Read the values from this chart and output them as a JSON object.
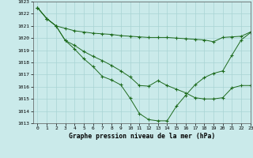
{
  "title": "Graphe pression niveau de la mer (hPa)",
  "x": [
    0,
    1,
    2,
    3,
    4,
    5,
    6,
    7,
    8,
    9,
    10,
    11,
    12,
    13,
    14,
    15,
    16,
    17,
    18,
    19,
    20,
    21,
    22,
    23
  ],
  "line1": [
    1022.5,
    1021.6,
    1021.0,
    1020.8,
    1020.6,
    1020.5,
    1020.4,
    1020.35,
    1020.3,
    1020.2,
    1020.15,
    1020.1,
    1020.05,
    1020.05,
    1020.05,
    1020.0,
    1019.95,
    1019.9,
    1019.85,
    1019.7,
    1020.05,
    1020.1,
    1020.15,
    1020.5
  ],
  "line2": [
    1022.5,
    1021.6,
    1021.0,
    1019.8,
    1019.4,
    1018.9,
    1018.5,
    1018.15,
    1017.75,
    1017.3,
    1016.8,
    1016.1,
    1016.05,
    1016.5,
    1016.1,
    1015.8,
    1015.5,
    1015.1,
    1015.0,
    1015.0,
    1015.1,
    1015.9,
    1016.1,
    1016.1
  ],
  "line3": [
    1022.5,
    1021.6,
    1021.0,
    1019.8,
    1019.1,
    1018.3,
    1017.65,
    1016.85,
    1016.55,
    1016.15,
    1015.05,
    1013.8,
    1013.3,
    1013.2,
    1013.2,
    1014.4,
    1015.3,
    1016.15,
    1016.75,
    1017.1,
    1017.3,
    1018.6,
    1019.85,
    1020.45
  ],
  "line_color": "#1e6b1e",
  "marker": "+",
  "bg_color": "#caeaea",
  "grid_color": "#a8d4d4",
  "ylim": [
    1013,
    1023
  ],
  "xlim": [
    -0.5,
    23
  ],
  "yticks": [
    1013,
    1014,
    1015,
    1016,
    1017,
    1018,
    1019,
    1020,
    1021,
    1022,
    1023
  ],
  "xticks": [
    0,
    1,
    2,
    3,
    4,
    5,
    6,
    7,
    8,
    9,
    10,
    11,
    12,
    13,
    14,
    15,
    16,
    17,
    18,
    19,
    20,
    21,
    22,
    23
  ]
}
